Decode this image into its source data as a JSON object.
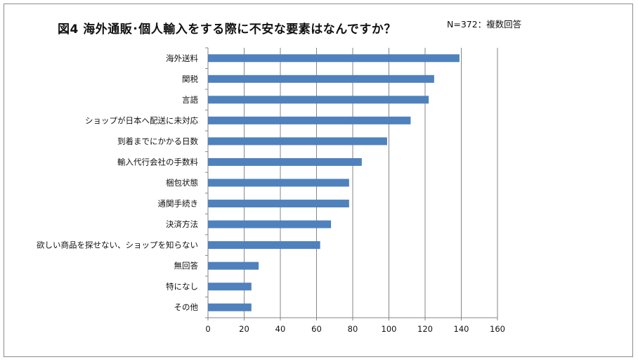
{
  "title": "図4 海外通販･個人輸入をする際に不安な要素はなんですか？",
  "note": "N=372：複数回答",
  "chart_data": {
    "type": "bar",
    "orientation": "horizontal",
    "categories": [
      "海外送料",
      "関税",
      "言語",
      "ショップが日本へ配送に未対応",
      "到着までにかかる日数",
      "輸入代行会社の手数料",
      "梱包状態",
      "通関手続き",
      "決済方法",
      "欲しい商品を探せない、ショップを知らない",
      "無回答",
      "特になし",
      "その他"
    ],
    "values": [
      139,
      125,
      122,
      112,
      99,
      85,
      78,
      78,
      68,
      62,
      28,
      24,
      24
    ],
    "xlim": [
      0,
      160
    ],
    "xticks": [
      "0",
      "20",
      "40",
      "60",
      "80",
      "100",
      "120",
      "140",
      "160"
    ],
    "bar_color": "#4f81bd",
    "grid": "vertical",
    "legend": "none"
  }
}
